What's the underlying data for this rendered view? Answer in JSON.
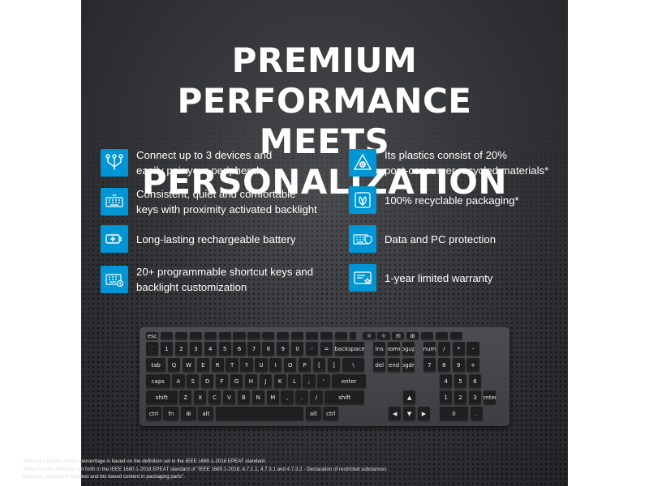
{
  "headline": {
    "line1": "PREMIUM PERFORMANCE",
    "line2": "MEETS PERSONALIZATION"
  },
  "features": {
    "left": [
      {
        "icon": "multi-device-icon",
        "text": "Connect up to 3 devices and\neasily pair your peripherals"
      },
      {
        "icon": "keyboard-backlight-icon",
        "text": "Consistent, quiet and comfortable\nkeys with proximity activated backlight"
      },
      {
        "icon": "battery-charge-icon",
        "text": "Long-lasting rechargeable battery"
      },
      {
        "icon": "shortcut-keys-icon",
        "text": "20+ programmable shortcut keys and\nbacklight customization"
      }
    ],
    "right": [
      {
        "icon": "recycle-triangle-icon",
        "text": "Its plastics consist of 20%\npost-consumer recycled materials*"
      },
      {
        "icon": "leaf-packaging-icon",
        "text": "100% recyclable packaging*"
      },
      {
        "icon": "data-protection-icon",
        "text": "Data and PC protection"
      },
      {
        "icon": "warranty-card-icon",
        "text": "1-year limited warranty"
      }
    ]
  },
  "keyboard": {
    "row1": [
      "esc",
      "",
      "",
      "",
      "",
      "",
      "",
      "",
      "",
      "",
      "",
      "",
      "",
      "",
      "",
      "☼",
      "☼",
      "✉",
      "⊞",
      "",
      "",
      ""
    ],
    "row2": [
      "`",
      "1",
      "2",
      "3",
      "4",
      "5",
      "6",
      "7",
      "8",
      "9",
      "0",
      "-",
      "=",
      "backspace",
      "ins",
      "home",
      "pgup",
      "num",
      "/",
      "*",
      "-"
    ],
    "row3": [
      "tab",
      "Q",
      "W",
      "E",
      "R",
      "T",
      "Y",
      "U",
      "I",
      "O",
      "P",
      "[",
      "]",
      "\\",
      "del",
      "end",
      "pgdn",
      "7",
      "8",
      "9",
      "+"
    ],
    "row4": [
      "caps",
      "A",
      "S",
      "D",
      "F",
      "G",
      "H",
      "J",
      "K",
      "L",
      ";",
      "'",
      "enter",
      "4",
      "5",
      "6"
    ],
    "row5": [
      "shift",
      "Z",
      "X",
      "C",
      "V",
      "B",
      "N",
      "M",
      ",",
      ".",
      "/",
      "shift",
      "▲",
      "1",
      "2",
      "3",
      "enter"
    ],
    "row6": [
      "ctrl",
      "fn",
      "⊞",
      "alt",
      "",
      "alt",
      "ctrl",
      "◀",
      "▼",
      "▶",
      "0",
      "."
    ]
  },
  "footnotes": {
    "line1": "*Recycled plastic content percentage is based on the definition set in the IEEE 1680.1-2018 EPEAT standard.",
    "line2": "*Based on the definition set forth in the IEEE 1680.1-2018 EPEAT standard of \"IEEE 1680.1-2018, 4.7.1.1, 4.7.3.1 and 4.7.3.2 - Declaration of restricted substances\n recycled, sustainably forested and bio based content in packaging parts\"."
  },
  "colors": {
    "accent": "#0096d6",
    "background": "#35373a",
    "text": "#ffffff"
  }
}
